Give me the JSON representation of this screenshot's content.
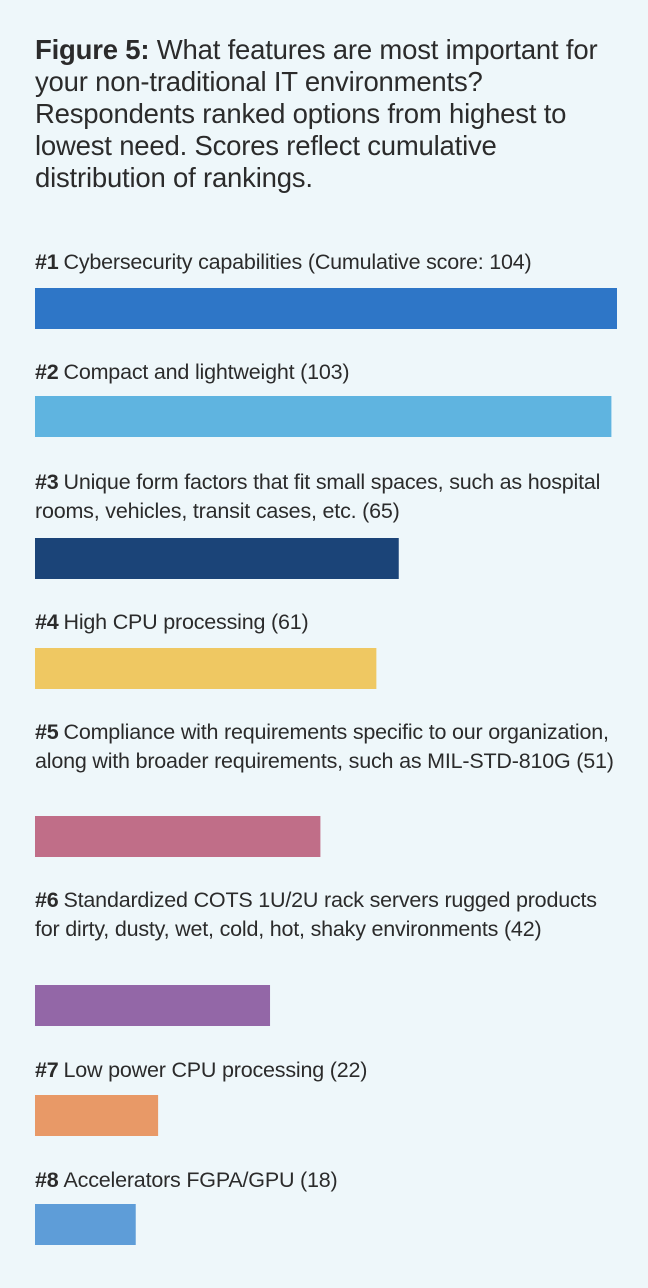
{
  "caption": {
    "figure_label": "Figure 5:",
    "text": "What features are most important for your non-traditional IT environments? Respondents ranked options from highest to lowest need. Scores reflect cumulative distribution of rankings."
  },
  "items": [
    {
      "rank": "#1",
      "label": "Cybersecurity capabilities (Cumulative score: 104)"
    },
    {
      "rank": "#2",
      "label": "Compact and lightweight (103)"
    },
    {
      "rank": "#3",
      "label": "Unique form factors that fit small spaces, such as hospital rooms, vehicles, transit cases, etc. (65)"
    },
    {
      "rank": "#4",
      "label": "High CPU processing (61)"
    },
    {
      "rank": "#5",
      "label": "Compliance with requirements specific to our organization, along with broader requirements, such as MIL-STD-810G  (51)"
    },
    {
      "rank": "#6",
      "label": "Standardized COTS 1U/2U rack servers rugged products for dirty, dusty, wet, cold, hot, shaky environments (42)"
    },
    {
      "rank": "#7",
      "label": "Low power CPU processing (22)"
    },
    {
      "rank": "#8",
      "label": "Accelerators FGPA/GPU (18)"
    }
  ],
  "chart_data": {
    "type": "bar",
    "orientation": "horizontal",
    "categories": [
      "Cybersecurity capabilities",
      "Compact and lightweight",
      "Unique form factors that fit small spaces, such as hospital rooms, vehicles, transit cases, etc.",
      "High CPU processing",
      "Compliance with requirements specific to our organization, along with broader requirements, such as MIL-STD-810G",
      "Standardized COTS 1U/2U rack servers rugged products for dirty, dusty, wet, cold, hot, shaky environments",
      "Low power CPU processing",
      "Accelerators FGPA/GPU"
    ],
    "values": [
      104,
      103,
      65,
      61,
      51,
      42,
      22,
      18
    ],
    "colors": [
      "#2e76c7",
      "#5fb4e0",
      "#1b4478",
      "#efc862",
      "#c06e88",
      "#9367a7",
      "#e89967",
      "#5e9dd8"
    ],
    "xlim": [
      0,
      104
    ],
    "grid": false,
    "legend": "none"
  }
}
